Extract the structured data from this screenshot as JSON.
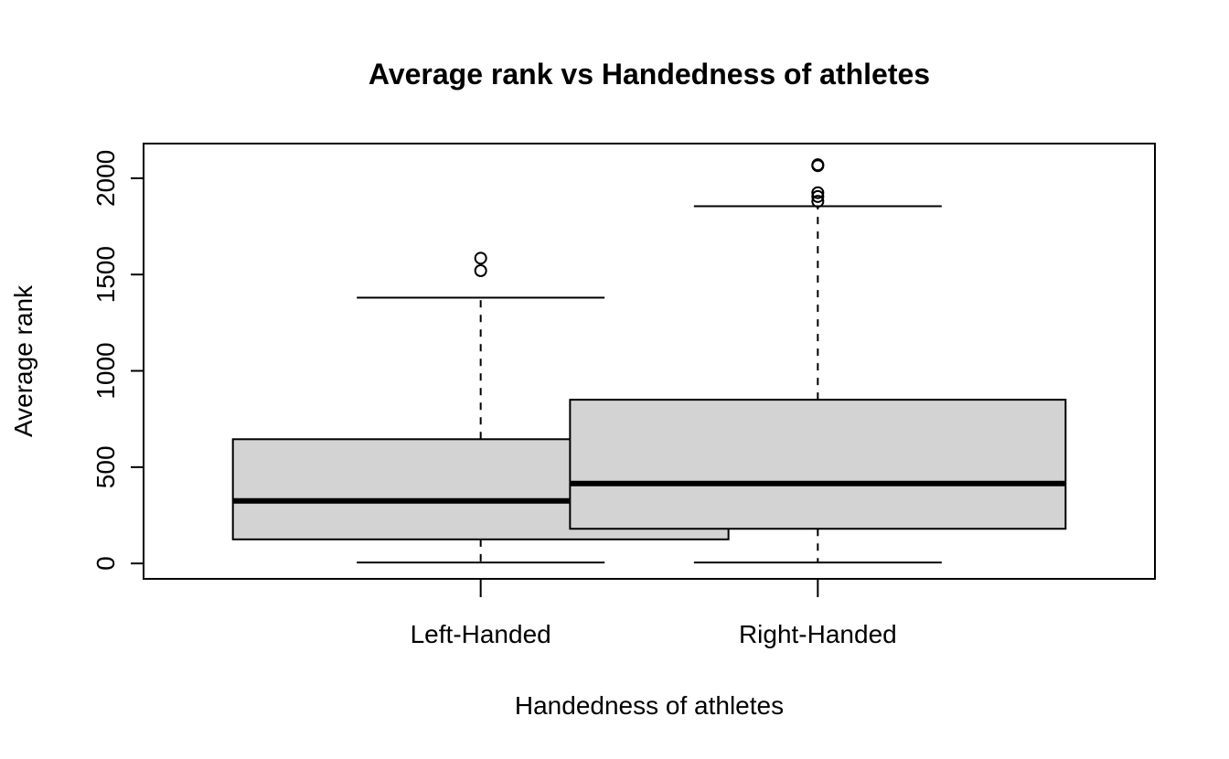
{
  "chart_data": {
    "type": "boxplot",
    "title": "Average rank vs Handedness of athletes",
    "xlabel": "Handedness of athletes",
    "ylabel": "Average rank",
    "ylim": [
      -80,
      2180
    ],
    "yticks": [
      0,
      500,
      1000,
      1500,
      2000
    ],
    "ytick_labels": [
      "0",
      "500",
      "1000",
      "1500",
      "2000"
    ],
    "grid": false,
    "box_fill": "#d3d3d3",
    "categories": [
      "Left-Handed",
      "Right-Handed"
    ],
    "boxes": [
      {
        "category": "Left-Handed",
        "whisker_low": 5,
        "q1": 125,
        "median": 325,
        "q3": 645,
        "whisker_high": 1380,
        "outliers": [
          1520,
          1585
        ]
      },
      {
        "category": "Right-Handed",
        "whisker_low": 5,
        "q1": 180,
        "median": 415,
        "q3": 850,
        "whisker_high": 1855,
        "outliers": [
          1880,
          1905,
          1925,
          2065,
          2070
        ]
      }
    ]
  }
}
